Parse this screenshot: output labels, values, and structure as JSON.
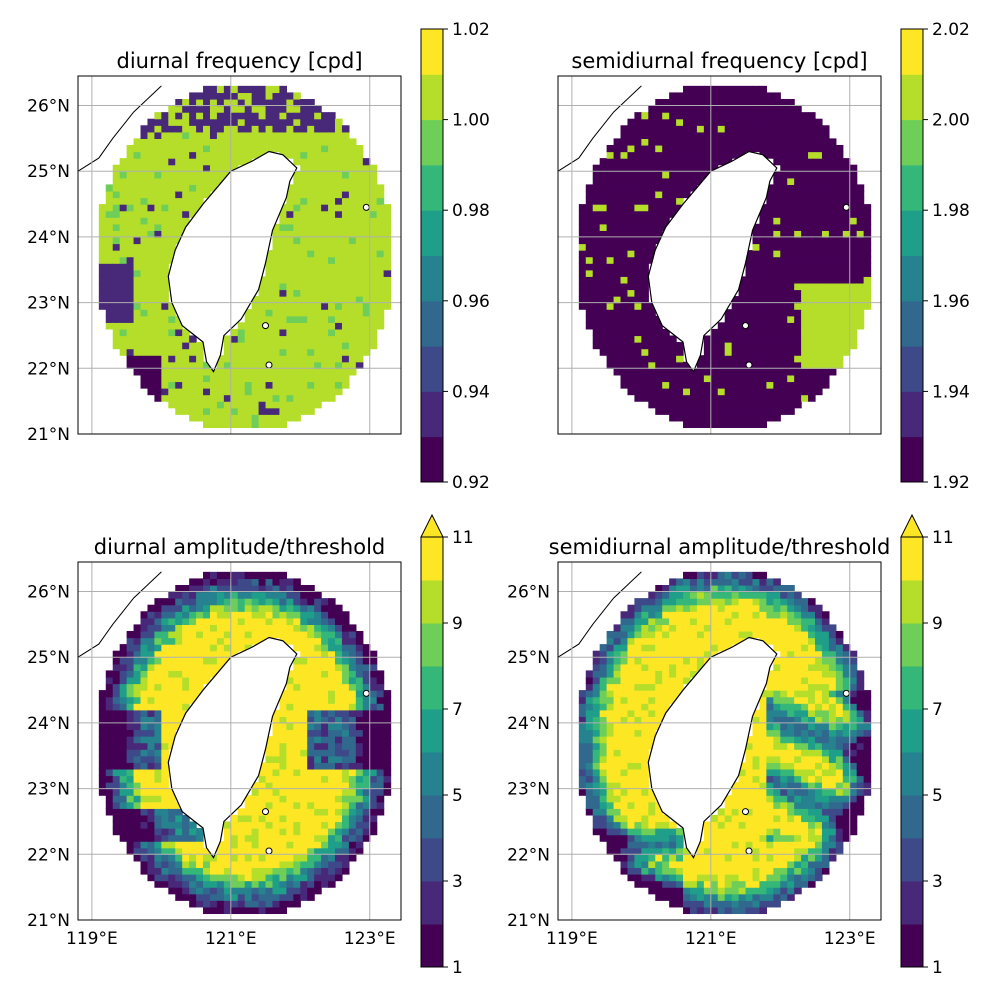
{
  "chart_data": [
    {
      "type": "heatmap",
      "title": "diurnal frequency [cpd]",
      "lat_ticks": [
        "21°N",
        "22°N",
        "23°N",
        "24°N",
        "25°N",
        "26°N"
      ],
      "lon_ticks": [],
      "lat_values": [
        21,
        22,
        23,
        24,
        25,
        26
      ],
      "lon_values": [
        119,
        121,
        123
      ],
      "extent": {
        "lon": [
          118.8,
          123.45
        ],
        "lat": [
          21.0,
          26.45
        ]
      },
      "colorbar": {
        "min": 0.92,
        "max": 1.02,
        "levels": 10,
        "ticks": [
          "0.92",
          "0.94",
          "0.96",
          "0.98",
          "1.00",
          "1.02"
        ],
        "extend_max": false
      },
      "field": "diurnal_freq",
      "dominant_value": 1.0,
      "patches": [
        {
          "desc": "southwest low patch",
          "value": 0.93
        },
        {
          "desc": "western band",
          "value": 0.94
        },
        {
          "desc": "northern edge",
          "value": 0.94
        }
      ],
      "grid": true
    },
    {
      "type": "heatmap",
      "title": "semidiurnal frequency [cpd]",
      "lat_ticks": [],
      "lon_ticks": [],
      "lat_values": [
        21,
        22,
        23,
        24,
        25,
        26
      ],
      "lon_values": [
        119,
        121,
        123
      ],
      "extent": {
        "lon": [
          118.8,
          123.45
        ],
        "lat": [
          21.0,
          26.45
        ]
      },
      "colorbar": {
        "min": 1.92,
        "max": 2.02,
        "levels": 10,
        "ticks": [
          "1.92",
          "1.94",
          "1.96",
          "1.98",
          "2.00",
          "2.02"
        ],
        "extend_max": false
      },
      "field": "semidiurnal_freq",
      "dominant_value": 1.93,
      "patches": [
        {
          "desc": "east coast patches",
          "value": 2.0
        }
      ],
      "grid": true
    },
    {
      "type": "heatmap",
      "title": "diurnal amplitude/threshold",
      "lat_ticks": [
        "21°N",
        "22°N",
        "23°N",
        "24°N",
        "25°N",
        "26°N"
      ],
      "lon_ticks": [
        "119°E",
        "121°E",
        "123°E"
      ],
      "lat_values": [
        21,
        22,
        23,
        24,
        25,
        26
      ],
      "lon_values": [
        119,
        121,
        123
      ],
      "extent": {
        "lon": [
          118.8,
          123.45
        ],
        "lat": [
          21.0,
          26.45
        ]
      },
      "colorbar": {
        "min": 1,
        "max": 11,
        "levels": 10,
        "ticks": [
          "1",
          "3",
          "5",
          "7",
          "9",
          "11"
        ],
        "extend_max": true
      },
      "field": "diurnal_amp",
      "dominant_value": 11,
      "grid": true
    },
    {
      "type": "heatmap",
      "title": "semidiurnal amplitude/threshold",
      "lat_ticks": [
        "21°N",
        "22°N",
        "23°N",
        "24°N",
        "25°N",
        "26°N"
      ],
      "lon_ticks": [
        "119°E",
        "121°E",
        "123°E"
      ],
      "lat_values": [
        21,
        22,
        23,
        24,
        25,
        26
      ],
      "lon_values": [
        119,
        121,
        123
      ],
      "extent": {
        "lon": [
          118.8,
          123.45
        ],
        "lat": [
          21.0,
          26.45
        ]
      },
      "colorbar": {
        "min": 1,
        "max": 11,
        "levels": 10,
        "ticks": [
          "1",
          "3",
          "5",
          "7",
          "9",
          "11"
        ],
        "extend_max": true
      },
      "field": "semidiurnal_amp",
      "dominant_value": 11,
      "grid": true
    }
  ],
  "colormap": [
    "#440154",
    "#482878",
    "#3e4989",
    "#31688e",
    "#26828e",
    "#1f9e89",
    "#35b779",
    "#6ece58",
    "#b5de2b",
    "#fde725"
  ]
}
